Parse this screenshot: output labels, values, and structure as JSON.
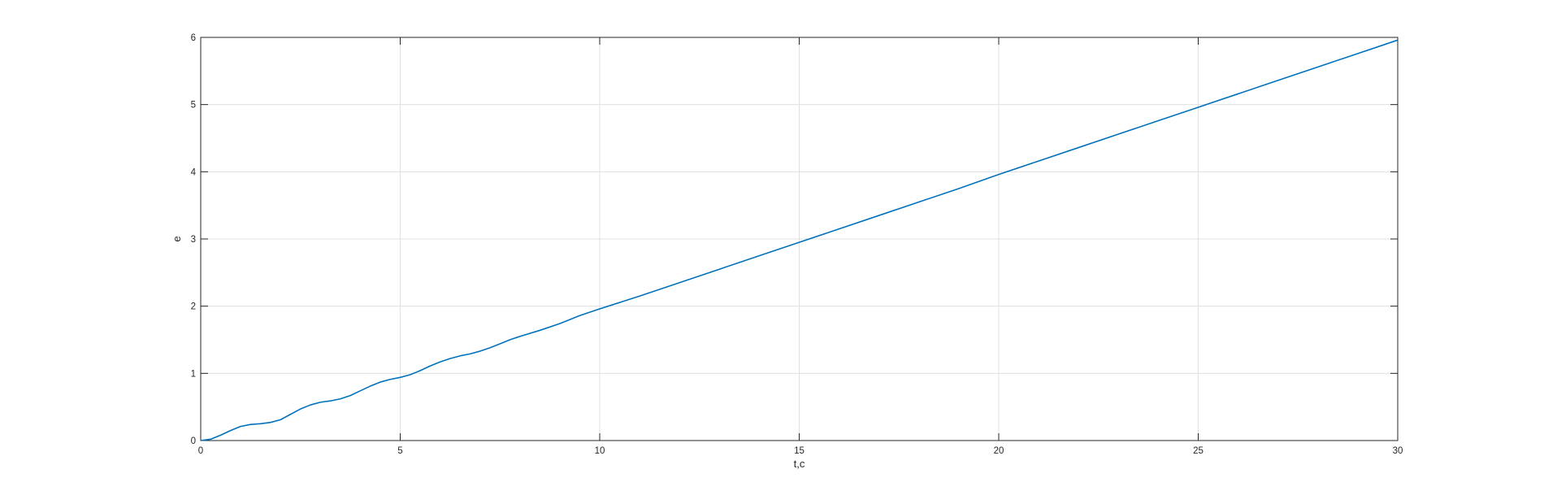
{
  "chart_data": {
    "type": "line",
    "title": "",
    "xlabel": "t,c",
    "ylabel": "e",
    "xlim": [
      0,
      30
    ],
    "ylim": [
      0,
      6
    ],
    "xticks": [
      0,
      5,
      10,
      15,
      20,
      25,
      30
    ],
    "yticks": [
      0,
      1,
      2,
      3,
      4,
      5,
      6
    ],
    "xtick_labels": [
      "0",
      "5",
      "10",
      "15",
      "20",
      "25",
      "30"
    ],
    "ytick_labels": [
      "0",
      "1",
      "2",
      "3",
      "4",
      "5",
      "6"
    ],
    "grid": true,
    "legend": null,
    "series": [
      {
        "color": "#0072bd",
        "x": [
          0,
          0.25,
          0.5,
          0.75,
          1.0,
          1.25,
          1.5,
          1.75,
          2.0,
          2.25,
          2.5,
          2.75,
          3.0,
          3.25,
          3.5,
          3.75,
          4.0,
          4.25,
          4.5,
          4.75,
          5.0,
          5.25,
          5.5,
          5.75,
          6.0,
          6.25,
          6.5,
          6.75,
          7.0,
          7.25,
          7.5,
          7.75,
          8.0,
          8.5,
          9.0,
          9.5,
          10.0,
          11.0,
          12.0,
          13.0,
          14.0,
          15.0,
          16.0,
          17.0,
          18.0,
          19.0,
          20.0,
          21.0,
          22.0,
          23.0,
          24.0,
          25.0,
          26.0,
          27.0,
          28.0,
          29.0,
          30.0
        ],
        "y": [
          0,
          0.02,
          0.08,
          0.15,
          0.21,
          0.24,
          0.25,
          0.27,
          0.31,
          0.39,
          0.47,
          0.53,
          0.57,
          0.59,
          0.62,
          0.67,
          0.74,
          0.81,
          0.87,
          0.91,
          0.94,
          0.98,
          1.04,
          1.11,
          1.17,
          1.22,
          1.26,
          1.29,
          1.33,
          1.38,
          1.44,
          1.5,
          1.55,
          1.64,
          1.74,
          1.86,
          1.96,
          2.15,
          2.35,
          2.55,
          2.75,
          2.95,
          3.15,
          3.35,
          3.55,
          3.75,
          3.96,
          4.16,
          4.36,
          4.56,
          4.76,
          4.96,
          5.16,
          5.36,
          5.56,
          5.76,
          5.96
        ]
      }
    ]
  }
}
